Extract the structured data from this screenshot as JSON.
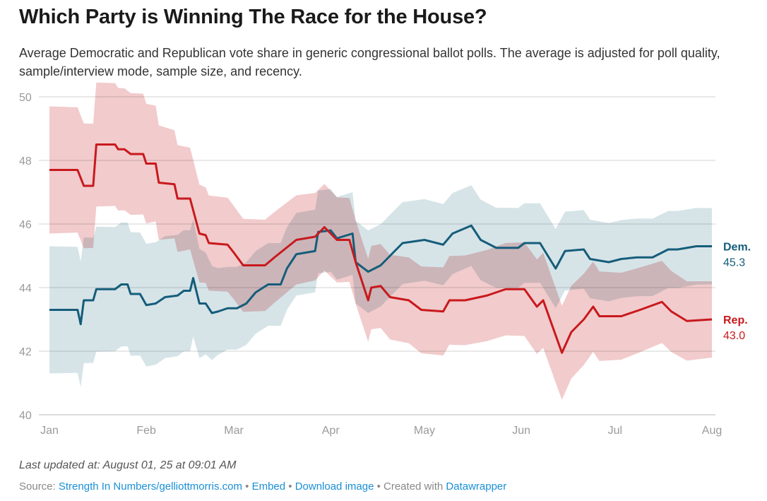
{
  "title": "Which Party is Winning The Race for the House?",
  "subtitle": "Average Democratic and Republican vote share in generic congressional ballot polls. The average is adjusted for poll quality, sample/interview mode, sample size, and recency.",
  "footer": {
    "updated": "Last updated at: August 01, 25 at 09:01 AM",
    "source_label": "Source:",
    "source_link": "Strength In Numbers/gelliottmorris.com",
    "sep1": " • ",
    "embed": "Embed",
    "sep2": "  • ",
    "download": "Download image",
    "created": " • Created with ",
    "datawrapper": "Datawrapper"
  },
  "chart_data": {
    "type": "line",
    "title": "Which Party is Winning The Race for the House?",
    "xlabel": "",
    "ylabel": "",
    "xlim_days": [
      0,
      212
    ],
    "ylim": [
      40,
      50
    ],
    "yticks": [
      40,
      42,
      44,
      46,
      48,
      50
    ],
    "xticks": [
      {
        "label": "Jan",
        "day": 0
      },
      {
        "label": "Feb",
        "day": 31
      },
      {
        "label": "Mar",
        "day": 59
      },
      {
        "label": "Apr",
        "day": 90
      },
      {
        "label": "May",
        "day": 120
      },
      {
        "label": "Jun",
        "day": 151
      },
      {
        "label": "Jul",
        "day": 181
      },
      {
        "label": "Aug",
        "day": 212
      }
    ],
    "grid": true,
    "series": [
      {
        "name": "Dem.",
        "end_label": "Dem.",
        "end_value": "45.3",
        "color": "#155d7a",
        "band_color": "#cfdfe4",
        "points": [
          [
            0,
            43.3
          ],
          [
            9,
            43.3
          ],
          [
            10,
            42.85
          ],
          [
            11,
            43.6
          ],
          [
            14,
            43.6
          ],
          [
            15,
            43.95
          ],
          [
            21,
            43.95
          ],
          [
            23,
            44.1
          ],
          [
            25,
            44.1
          ],
          [
            26,
            43.8
          ],
          [
            29,
            43.8
          ],
          [
            31,
            43.45
          ],
          [
            34,
            43.5
          ],
          [
            37,
            43.7
          ],
          [
            41,
            43.75
          ],
          [
            43,
            43.9
          ],
          [
            45,
            43.9
          ],
          [
            46,
            44.3
          ],
          [
            48,
            43.5
          ],
          [
            50,
            43.5
          ],
          [
            52,
            43.2
          ],
          [
            54,
            43.25
          ],
          [
            57,
            43.35
          ],
          [
            60,
            43.35
          ],
          [
            63,
            43.5
          ],
          [
            66,
            43.85
          ],
          [
            70,
            44.1
          ],
          [
            74,
            44.1
          ],
          [
            76,
            44.6
          ],
          [
            79,
            45.05
          ],
          [
            85,
            45.15
          ],
          [
            86,
            45.75
          ],
          [
            90,
            45.8
          ],
          [
            92,
            45.55
          ],
          [
            97,
            45.7
          ],
          [
            98,
            44.8
          ],
          [
            102,
            44.5
          ],
          [
            106,
            44.7
          ],
          [
            109,
            45.0
          ],
          [
            113,
            45.4
          ],
          [
            120,
            45.5
          ],
          [
            126,
            45.35
          ],
          [
            129,
            45.7
          ],
          [
            135,
            45.95
          ],
          [
            138,
            45.5
          ],
          [
            143,
            45.25
          ],
          [
            150,
            45.25
          ],
          [
            152,
            45.4
          ],
          [
            157,
            45.4
          ],
          [
            162,
            44.6
          ],
          [
            165,
            45.15
          ],
          [
            171,
            45.2
          ],
          [
            173,
            44.9
          ],
          [
            179,
            44.8
          ],
          [
            183,
            44.9
          ],
          [
            188,
            44.95
          ],
          [
            193,
            44.95
          ],
          [
            198,
            45.2
          ],
          [
            201,
            45.2
          ],
          [
            207,
            45.3
          ],
          [
            212,
            45.3
          ]
        ],
        "band_halfwidth": [
          [
            0,
            2.0
          ],
          [
            45,
            1.9
          ],
          [
            55,
            1.3
          ],
          [
            100,
            1.3
          ],
          [
            212,
            1.2
          ]
        ]
      },
      {
        "name": "Rep.",
        "end_label": "Rep.",
        "end_value": "43.0",
        "color": "#c8191d",
        "band_color": "#f0c2c3",
        "points": [
          [
            0,
            47.7
          ],
          [
            9,
            47.7
          ],
          [
            11,
            47.2
          ],
          [
            14,
            47.2
          ],
          [
            15,
            48.5
          ],
          [
            21,
            48.5
          ],
          [
            22,
            48.35
          ],
          [
            24,
            48.35
          ],
          [
            26,
            48.2
          ],
          [
            30,
            48.2
          ],
          [
            31,
            47.9
          ],
          [
            34,
            47.9
          ],
          [
            35,
            47.3
          ],
          [
            40,
            47.25
          ],
          [
            41,
            46.8
          ],
          [
            45,
            46.8
          ],
          [
            48,
            45.7
          ],
          [
            50,
            45.65
          ],
          [
            51,
            45.4
          ],
          [
            57,
            45.35
          ],
          [
            59,
            45.1
          ],
          [
            62,
            44.7
          ],
          [
            69,
            44.7
          ],
          [
            72,
            44.95
          ],
          [
            79,
            45.5
          ],
          [
            85,
            45.6
          ],
          [
            88,
            45.9
          ],
          [
            92,
            45.5
          ],
          [
            96,
            45.5
          ],
          [
            98,
            44.8
          ],
          [
            102,
            43.6
          ],
          [
            103,
            44.0
          ],
          [
            106,
            44.05
          ],
          [
            109,
            43.7
          ],
          [
            115,
            43.6
          ],
          [
            119,
            43.3
          ],
          [
            126,
            43.25
          ],
          [
            128,
            43.6
          ],
          [
            133,
            43.6
          ],
          [
            140,
            43.75
          ],
          [
            146,
            43.95
          ],
          [
            152,
            43.95
          ],
          [
            156,
            43.4
          ],
          [
            158,
            43.6
          ],
          [
            162,
            42.5
          ],
          [
            164,
            41.95
          ],
          [
            167,
            42.6
          ],
          [
            171,
            43.0
          ],
          [
            174,
            43.4
          ],
          [
            176,
            43.1
          ],
          [
            183,
            43.1
          ],
          [
            189,
            43.3
          ],
          [
            196,
            43.55
          ],
          [
            199,
            43.25
          ],
          [
            204,
            42.95
          ],
          [
            212,
            43.0
          ]
        ],
        "band_halfwidth": [
          [
            0,
            2.0
          ],
          [
            30,
            1.9
          ],
          [
            50,
            1.5
          ],
          [
            80,
            1.4
          ],
          [
            100,
            1.3
          ],
          [
            160,
            1.5
          ],
          [
            212,
            1.2
          ]
        ]
      }
    ]
  }
}
